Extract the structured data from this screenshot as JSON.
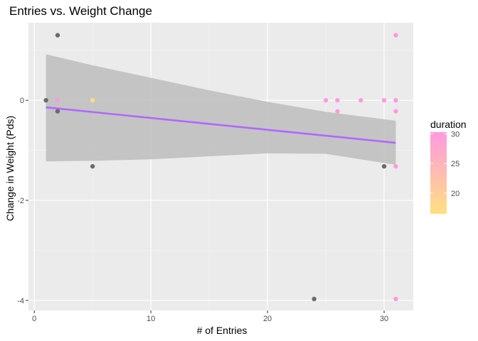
{
  "chart_data": {
    "type": "scatter",
    "title": "Entries vs. Weight Change",
    "xlabel": "# of Entries",
    "ylabel": "Change in Weight (Pds)",
    "xlim": [
      -0.5,
      32.5
    ],
    "ylim": [
      -4.2,
      1.55
    ],
    "x_ticks": [
      0,
      10,
      20,
      30
    ],
    "x_tick_labels": [
      "0",
      "10",
      "20",
      "30"
    ],
    "y_ticks": [
      -4,
      -2,
      0
    ],
    "y_tick_labels": [
      "-4",
      "-2",
      "0"
    ],
    "grid": true,
    "legend": {
      "title": "duration",
      "position": "right",
      "breaks": [
        20,
        25,
        30
      ],
      "break_labels": [
        "20",
        "25",
        "30"
      ],
      "range": [
        16.5,
        30.3
      ],
      "low_color": "#ffe080",
      "high_color": "#ff99e0"
    },
    "na_color": "#6b6b6b",
    "points": [
      {
        "x": 1,
        "y": 0,
        "duration": null
      },
      {
        "x": 2,
        "y": 1.3,
        "duration": null
      },
      {
        "x": 2,
        "y": -0.22,
        "duration": null
      },
      {
        "x": 2,
        "y": 0,
        "duration": 30
      },
      {
        "x": 5,
        "y": 0,
        "duration": 17
      },
      {
        "x": 5,
        "y": -1.32,
        "duration": null
      },
      {
        "x": 24,
        "y": -3.97,
        "duration": null
      },
      {
        "x": 25,
        "y": 0,
        "duration": 30
      },
      {
        "x": 26,
        "y": 0,
        "duration": 30
      },
      {
        "x": 26,
        "y": -0.22,
        "duration": 30
      },
      {
        "x": 28,
        "y": 0,
        "duration": 30
      },
      {
        "x": 30,
        "y": 0,
        "duration": 30
      },
      {
        "x": 30,
        "y": -1.32,
        "duration": null
      },
      {
        "x": 31,
        "y": 1.3,
        "duration": 30
      },
      {
        "x": 31,
        "y": 0,
        "duration": 30
      },
      {
        "x": 31,
        "y": -0.22,
        "duration": 30
      },
      {
        "x": 31,
        "y": -1.32,
        "duration": 30
      },
      {
        "x": 31,
        "y": -3.97,
        "duration": 30
      }
    ],
    "trend": {
      "method": "linear",
      "color": "#b266ff",
      "start": {
        "x": 1,
        "y": -0.14
      },
      "end": {
        "x": 31,
        "y": -0.85
      }
    },
    "confidence_band": {
      "color": "#bdbdbd",
      "x": [
        1,
        5,
        10,
        15,
        20,
        25,
        31
      ],
      "upper": [
        0.92,
        0.7,
        0.45,
        0.2,
        -0.03,
        -0.23,
        -0.41
      ],
      "lower": [
        -1.22,
        -1.21,
        -1.18,
        -1.12,
        -1.06,
        -1.07,
        -1.29
      ]
    }
  }
}
